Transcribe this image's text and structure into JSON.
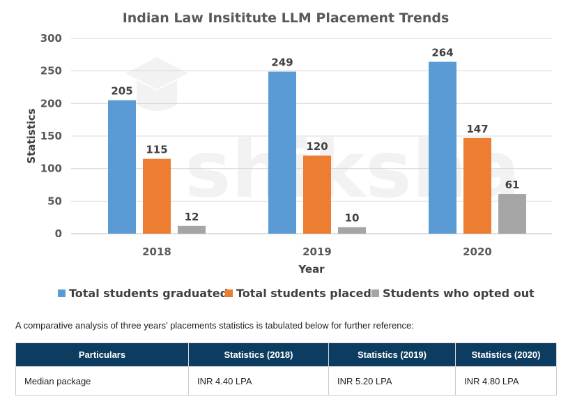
{
  "chart_data": {
    "type": "bar",
    "title": "Indian Law Insititute LLM Placement Trends",
    "xlabel": "Year",
    "ylabel": "Statistics",
    "ylim": [
      0,
      300
    ],
    "yticks": [
      0,
      50,
      100,
      150,
      200,
      250,
      300
    ],
    "grid": true,
    "legend": "bottom",
    "categories": [
      "2018",
      "2019",
      "2020"
    ],
    "series": [
      {
        "name": "Total students graduated",
        "color": "#5b9bd5",
        "values": [
          205,
          249,
          264
        ]
      },
      {
        "name": "Total students placed",
        "color": "#ed7d31",
        "values": [
          115,
          120,
          147
        ]
      },
      {
        "name": "Students who opted out",
        "color": "#a5a5a5",
        "values": [
          12,
          10,
          61
        ]
      }
    ]
  },
  "watermark": "shiksha",
  "intro_text": "A comparative analysis of three years’ placements statistics is tabulated below for further reference:",
  "table": {
    "headers": [
      "Particulars",
      "Statistics (2018)",
      "Statistics (2019)",
      "Statistics (2020)"
    ],
    "rows": [
      [
        "Median package",
        "INR 4.40 LPA",
        "INR 5.20 LPA",
        "INR 4.80 LPA"
      ]
    ]
  }
}
